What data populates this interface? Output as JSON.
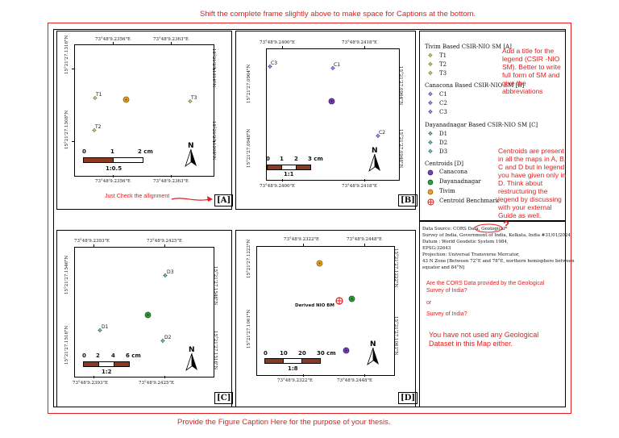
{
  "notes": {
    "top": "Shift the complete frame slightly above to make space for Captions at the bottom.",
    "bottom": "Provide the Figure Caption Here for the purpose of your thesis.",
    "alignment": "Just Check the allignment",
    "legend_title": "Add a title for the legend (CSIR -NIO SM). Better to write full form of SM and give the abbreviations",
    "centroids": "Centroids are present in all the maps in A, B, C and D but in legend you have given only in D. Think about restructuring the legend by discussing with your external Guide as well.",
    "cors_question_1": "Are the CORS Data provided by the Geological Survey of India?",
    "cors_or": "or",
    "cors_question_2": "Survey of India?",
    "geological": "You have not used any Geological Dataset in this Map either.",
    "question_mark": "?"
  },
  "panel_a": {
    "letter": "[A]",
    "top_left": "73°48'9.2356\"E",
    "top_right": "73°48'9.2363\"E",
    "bottom_left": "73°48'9.2356\"E",
    "bottom_right": "73°48'9.2363\"E",
    "left_top": "15°21'27.1316\"N",
    "left_bottom": "15°21'27.1308\"N",
    "right_top": "15°21'27.1316\"N",
    "right_bottom": "15°21'27.1308\"N",
    "points": [
      "T1",
      "T2",
      "T3"
    ],
    "scale_ticks": [
      "0",
      "1",
      "2 cm"
    ],
    "scale_ratio": "1:0.5",
    "north": "N"
  },
  "panel_b": {
    "letter": "[B]",
    "top_left": "73°48'9.2400\"E",
    "top_right": "73°48'9.2418\"E",
    "bottom_left": "73°48'9.2400\"E",
    "bottom_right": "73°48'9.2418\"E",
    "left_top": "15°21'27.0964\"N",
    "left_bottom": "15°21'27.0948\"N",
    "right_top": "15°21'27.0964\"N",
    "right_bottom": "15°21'27.0948\"N",
    "points": [
      "C1",
      "C2",
      "C3"
    ],
    "scale_ticks": [
      "0",
      "1",
      "2",
      "3 cm"
    ],
    "scale_ratio": "1:1",
    "north": "N"
  },
  "panel_c": {
    "letter": "[C]",
    "top_left": "73°48'9.2393\"E",
    "top_right": "73°48'9.2425\"E",
    "bottom_left": "73°48'9.2393\"E",
    "bottom_right": "73°48'9.2425\"E",
    "left_top": "15°21'27.1546\"N",
    "left_bottom": "15°21'27.1516\"N",
    "right_top": "15°21'27.1546\"N",
    "right_bottom": "15°21'27.1516\"N",
    "points": [
      "D1",
      "D2",
      "D3"
    ],
    "scale_ticks": [
      "0",
      "2",
      "4",
      "6 cm"
    ],
    "scale_ratio": "1:2",
    "north": "N"
  },
  "panel_d": {
    "letter": "[D]",
    "top_left": "73°48'9.2322\"E",
    "top_right": "73°48'9.2448\"E",
    "bottom_left": "73°48'9.2322\"E",
    "bottom_right": "73°48'9.2448\"E",
    "left_top": "15°21'27.1222\"N",
    "left_bottom": "15°21'27.1061\"N",
    "right_top": "15°21'27.1222\"N",
    "right_bottom": "15°21'27.1061\"N",
    "bm_label": "Derived NIO BM",
    "scale_ticks": [
      "0",
      "10",
      "20",
      "30 cm"
    ],
    "scale_ratio": "1:8",
    "north": "N"
  },
  "legend": {
    "group_a_title": "Tivim Based CSIR-NIO SM [A]",
    "group_a": [
      "T1",
      "T2",
      "T3"
    ],
    "group_b_title": "Canacona Based CSIR-NIO SM [B]",
    "group_b": [
      "C1",
      "C2",
      "C3"
    ],
    "group_c_title": "Dayanadnagar Based CSIR-NIO SM [C]",
    "group_c": [
      "D1",
      "D2",
      "D3"
    ],
    "centroids_title": "Centroids [D]",
    "centroids": [
      "Canacona",
      "Dayanadnagar",
      "Tivim",
      "Centroid Benchmark"
    ]
  },
  "datasource": {
    "line1": "Data Source: CORS Data, Geological",
    "line2": "Survey of India, Government of India, Kolkata, India #31/01/2024",
    "line3": "Datum : World Geodetic System 1984,",
    "line4": "EPSG:32643",
    "line5": "Projection: Universal Transverse Mercator,",
    "line6": "43 N Zone [Between 72°E and 78°E, northern hemisphere between",
    "line7": "equator and 84°N]"
  },
  "colors": {
    "annotation": "#e02020",
    "canacona": "#7b3fb5",
    "dayanadnagar": "#2f9e3e",
    "tivim": "#f0a020",
    "scalebar": "#8b3a1e"
  }
}
